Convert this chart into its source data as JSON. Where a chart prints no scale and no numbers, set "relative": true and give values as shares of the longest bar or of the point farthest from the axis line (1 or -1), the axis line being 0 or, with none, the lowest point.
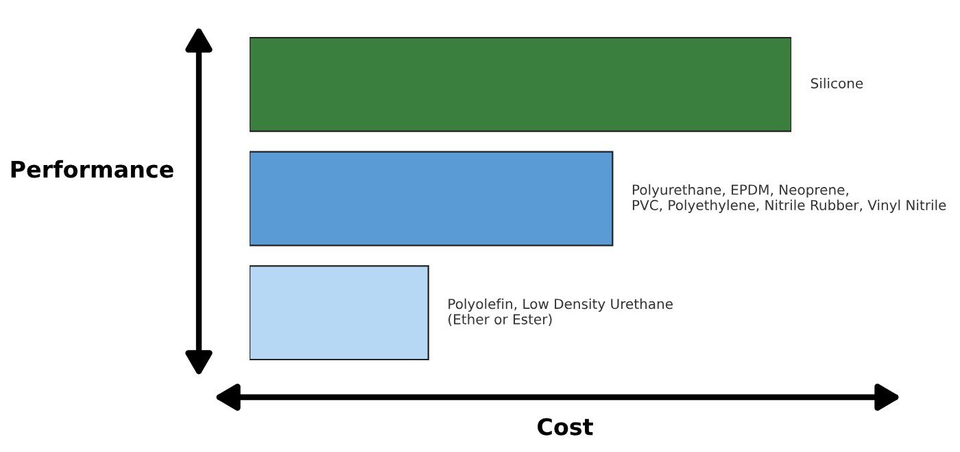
{
  "chart_data": {
    "type": "bar",
    "orientation": "horizontal",
    "relative": true,
    "categories": [
      null,
      null,
      null
    ],
    "values": [
      1,
      0.67,
      0.33
    ],
    "colors": [
      "#3b7f3f",
      "#5b9bd5",
      "#b7d8f4"
    ],
    "annotations": [
      {
        "text": "Silicone",
        "x": 1
      },
      {
        "text": "Polyurethane, EPDM, Neoprene,\nPVC, Polyethylene, Nitrile Rubber, Vinyl Nitrile",
        "x": 0.67
      },
      {
        "text": "Polyolefin, Low Density Urethane\n(Ether or Ester)",
        "x": 0.33
      }
    ],
    "xlabel": "Cost",
    "ylabel": "Performance"
  }
}
